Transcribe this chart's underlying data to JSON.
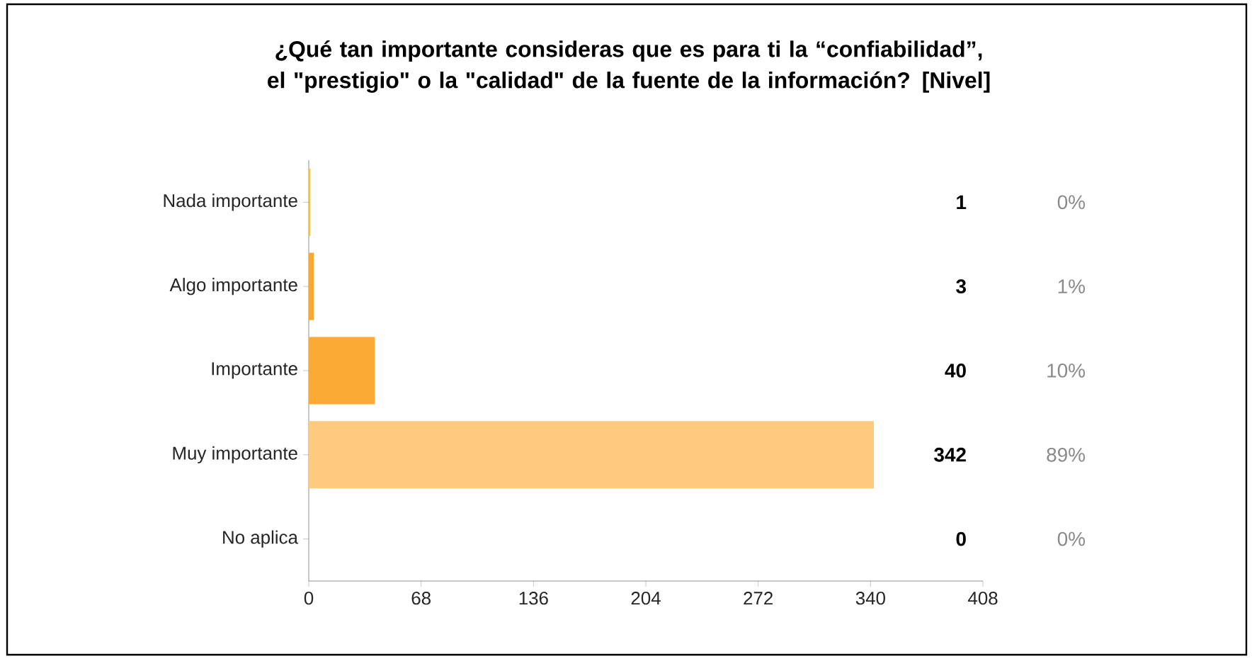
{
  "chart_data": {
    "type": "bar",
    "orientation": "horizontal",
    "title": "¿Qué tan importante consideras que es para ti la “confiabilidad”, el \"prestigio\" o la \"calidad\" de la fuente de la información? [Nivel]",
    "categories": [
      "Nada importante",
      "Algo importante",
      "Importante",
      "Muy importante",
      "No aplica"
    ],
    "values": [
      1,
      3,
      40,
      342,
      0
    ],
    "colors": [
      "#f5c343",
      "#f7a833",
      "#fbab35",
      "#fdca80",
      "#fdca80"
    ],
    "data_labels": true,
    "annotations": [
      "0%",
      "1%",
      "10%",
      "89%",
      "0%"
    ],
    "xlim": [
      0,
      408
    ],
    "xticks": [
      0,
      68,
      136,
      204,
      272,
      340,
      408
    ]
  }
}
